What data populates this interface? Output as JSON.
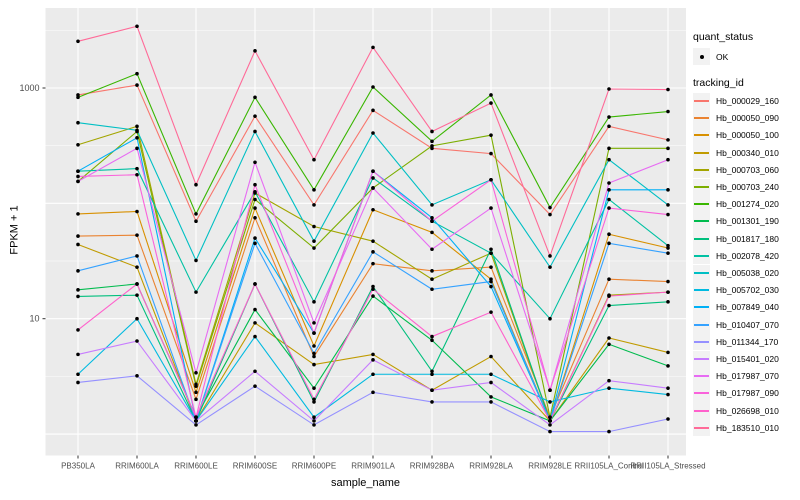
{
  "chart_data": {
    "type": "line",
    "title": "",
    "xlabel": "sample_name",
    "ylabel": "FPKM + 1",
    "y_axis": {
      "scale": "log10",
      "tick_labels": [
        "1000",
        "10"
      ],
      "tick_values": [
        1000,
        10
      ],
      "ylim": [
        1,
        3500
      ],
      "grid": "on"
    },
    "panel_bg": "#EBEBEB",
    "grid_color": "#FFFFFF",
    "point_color": "#000000",
    "categories": [
      "PB350LA",
      "RRIM600LA",
      "RRIM600LE",
      "RRIM600SE",
      "RRIM600PE",
      "RRIM901LA",
      "RRIM928BA",
      "RRIM928LA",
      "RRIM928LE",
      "RRII105LA_Control",
      "RRII105LA_Stressed"
    ],
    "legend": {
      "position": "right",
      "quant_status_title": "quant_status",
      "quant_status_items": [
        {
          "label": "OK",
          "marker": "point"
        }
      ],
      "tracking_title": "tracking_id"
    },
    "series": [
      {
        "name": "Hb_000029_160",
        "color": "#F8766D",
        "values": [
          870,
          1060,
          70,
          570,
          97,
          640,
          300,
          270,
          80,
          465,
          355
        ]
      },
      {
        "name": "Hb_000050_090",
        "color": "#EA8331",
        "values": [
          52,
          53,
          2.0,
          75,
          4.7,
          30,
          26,
          28,
          1.4,
          22,
          21
        ]
      },
      {
        "name": "Hb_000050_100",
        "color": "#D89000",
        "values": [
          81,
          85,
          2.3,
          91,
          5.8,
          88,
          56,
          22,
          1.3,
          54,
          41
        ]
      },
      {
        "name": "Hb_000340_010",
        "color": "#C09B00",
        "values": [
          44,
          28,
          1.3,
          9.2,
          4.0,
          4.9,
          2.4,
          4.7,
          1.3,
          6.8,
          5.1
        ]
      },
      {
        "name": "Hb_000703_060",
        "color": "#A3A500",
        "values": [
          322,
          465,
          2.7,
          123,
          63,
          47,
          22,
          37,
          1.3,
          16,
          17
        ]
      },
      {
        "name": "Hb_000703_240",
        "color": "#7CAE00",
        "values": [
          155,
          420,
          2.6,
          108,
          41,
          136,
          315,
          390,
          1.4,
          300,
          300
        ]
      },
      {
        "name": "Hb_001274_020",
        "color": "#39B600",
        "values": [
          830,
          1330,
          81,
          830,
          131,
          1020,
          345,
          870,
          92,
          560,
          625
        ]
      },
      {
        "name": "Hb_001301_190",
        "color": "#00BB4E",
        "values": [
          17.8,
          20,
          1.4,
          12,
          2.5,
          15.7,
          6.5,
          2.1,
          1.3,
          6.0,
          3.9
        ]
      },
      {
        "name": "Hb_001817_180",
        "color": "#00BF7D",
        "values": [
          15.6,
          16,
          1.3,
          20,
          1.9,
          19,
          3.5,
          40,
          1.3,
          13,
          14
        ]
      },
      {
        "name": "Hb_002078_420",
        "color": "#00C1A3",
        "values": [
          190,
          200,
          17,
          126,
          14,
          166,
          70,
          37,
          10,
          108,
          43
        ]
      },
      {
        "name": "Hb_005038_020",
        "color": "#00BFC4",
        "values": [
          500,
          430,
          32,
          420,
          47,
          407,
          97,
          160,
          28,
          239,
          97
        ]
      },
      {
        "name": "Hb_005702_030",
        "color": "#00BAE0",
        "values": [
          3.3,
          10,
          1.3,
          7.0,
          1.4,
          3.3,
          3.3,
          3.3,
          1.9,
          2.5,
          2.2
        ]
      },
      {
        "name": "Hb_007849_040",
        "color": "#00B0F6",
        "values": [
          190,
          370,
          1.3,
          50,
          7.5,
          190,
          75,
          19,
          1.3,
          131,
          131
        ]
      },
      {
        "name": "Hb_010407_070",
        "color": "#35A2FF",
        "values": [
          26,
          35,
          1.3,
          45,
          5.0,
          38,
          18,
          21,
          1.3,
          45,
          37
        ]
      },
      {
        "name": "Hb_011344_170",
        "color": "#9590FF",
        "values": [
          2.8,
          3.2,
          1.2,
          2.6,
          1.2,
          2.3,
          1.9,
          1.9,
          1.05,
          1.05,
          1.35
        ]
      },
      {
        "name": "Hb_015401_020",
        "color": "#C77CFF",
        "values": [
          4.9,
          6.4,
          1.3,
          3.5,
          1.3,
          4.4,
          2.4,
          2.8,
          1.2,
          2.9,
          2.5
        ]
      },
      {
        "name": "Hb_017987_070",
        "color": "#E76BF3",
        "values": [
          155,
          300,
          3.4,
          227,
          9.2,
          136,
          40,
          91,
          2.4,
          150,
          239
        ]
      },
      {
        "name": "Hb_017987_090",
        "color": "#FA62DB",
        "values": [
          171,
          177,
          1.4,
          145,
          7.5,
          190,
          70,
          160,
          2.4,
          91,
          80
        ]
      },
      {
        "name": "Hb_026698_010",
        "color": "#FF61CC",
        "values": [
          8,
          20,
          1.4,
          20,
          2.0,
          18,
          7.0,
          11.4,
          1.3,
          15.7,
          17
        ]
      },
      {
        "name": "Hb_183510_010",
        "color": "#FF6A98",
        "values": [
          2540,
          3430,
          145,
          2100,
          239,
          2250,
          420,
          740,
          35,
          980,
          970
        ]
      }
    ]
  }
}
